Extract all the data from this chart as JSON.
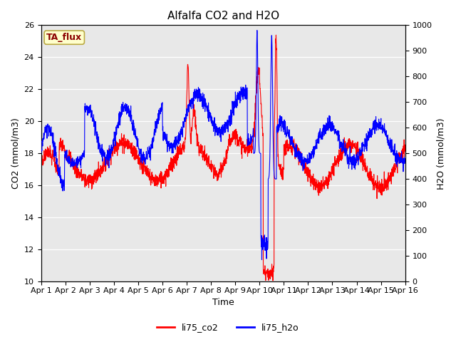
{
  "title": "Alfalfa CO2 and H2O",
  "xlabel": "Time",
  "ylabel_left": "CO2 (mmol/m3)",
  "ylabel_right": "H2O (mmol/m3)",
  "ylim_left": [
    10,
    26
  ],
  "ylim_right": [
    0,
    1000
  ],
  "yticks_left": [
    10,
    12,
    14,
    16,
    18,
    20,
    22,
    24,
    26
  ],
  "yticks_right": [
    0,
    100,
    200,
    300,
    400,
    500,
    600,
    700,
    800,
    900,
    1000
  ],
  "xtick_labels": [
    "Apr 1",
    "Apr 2",
    "Apr 3",
    "Apr 4",
    "Apr 5",
    "Apr 6",
    "Apr 7",
    "Apr 8",
    "Apr 9",
    "Apr 10",
    "Apr 11",
    "Apr 12",
    "Apr 13",
    "Apr 14",
    "Apr 15",
    "Apr 16"
  ],
  "legend_labels": [
    "li75_co2",
    "li75_h2o"
  ],
  "legend_colors": [
    "red",
    "blue"
  ],
  "annotation_text": "TA_flux",
  "annotation_bg": "#ffffcc",
  "annotation_border": "#bbaa44",
  "co2_color": "red",
  "h2o_color": "blue",
  "bg_color": "#e8e8e8",
  "title_fontsize": 11,
  "axis_label_fontsize": 9,
  "tick_fontsize": 8,
  "legend_fontsize": 9
}
